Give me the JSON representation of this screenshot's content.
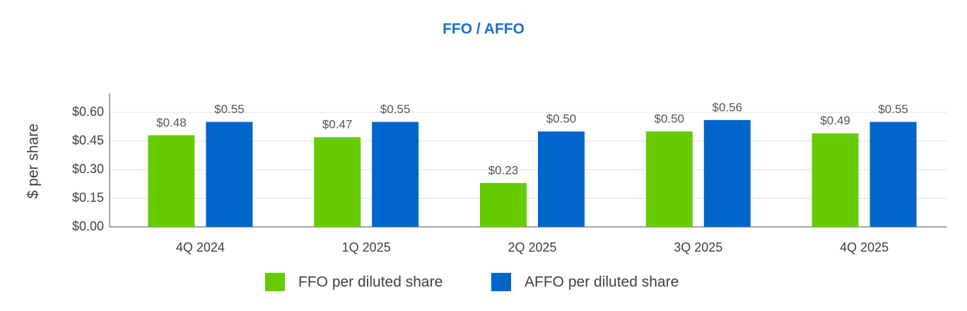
{
  "chart_data": {
    "type": "bar",
    "title": "FFO / AFFO",
    "y_label": "$ per share",
    "categories": [
      "4Q 2024",
      "1Q 2025",
      "2Q 2025",
      "3Q 2025",
      "4Q 2025"
    ],
    "series": [
      {
        "name": "FFO per diluted share",
        "color": "#66cc00",
        "values": [
          0.48,
          0.47,
          0.23,
          0.5,
          0.49
        ],
        "value_labels": [
          "$0.48",
          "$0.47",
          "$0.23",
          "$0.50",
          "$0.49"
        ]
      },
      {
        "name": "AFFO per diluted share",
        "color": "#0066cc",
        "values": [
          0.55,
          0.55,
          0.5,
          0.56,
          0.55
        ],
        "value_labels": [
          "$0.55",
          "$0.55",
          "$0.50",
          "$0.56",
          "$0.55"
        ]
      }
    ],
    "ylim": [
      0,
      0.7
    ],
    "yticks": [
      {
        "value": 0,
        "label": "$0.00"
      },
      {
        "value": 0.15,
        "label": "$0.15"
      },
      {
        "value": 0.3,
        "label": "$0.30"
      },
      {
        "value": 0.45,
        "label": "$0.45"
      },
      {
        "value": 0.6,
        "label": "$0.60"
      }
    ],
    "grid": true,
    "legend": "bottom"
  }
}
